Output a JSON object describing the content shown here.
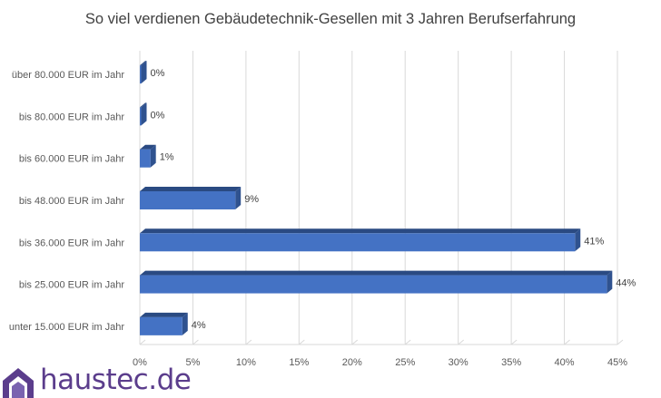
{
  "chart_data": {
    "type": "bar",
    "orientation": "horizontal",
    "title": "So viel verdienen Gebäudetechnik-Gesellen mit 3 Jahren Berufserfahrung",
    "categories": [
      "über 80.000 EUR im Jahr",
      "bis 80.000 EUR im Jahr",
      "bis 60.000 EUR im Jahr",
      "bis 48.000 EUR im Jahr",
      "bis 36.000 EUR im Jahr",
      "bis 25.000 EUR im Jahr",
      "unter 15.000 EUR im Jahr"
    ],
    "values": [
      0,
      0,
      1,
      9,
      41,
      44,
      4
    ],
    "data_labels": [
      "0%",
      "0%",
      "1%",
      "9%",
      "41%",
      "44%",
      "4%"
    ],
    "xlim": [
      0,
      45
    ],
    "xticks": [
      0,
      5,
      10,
      15,
      20,
      25,
      30,
      35,
      40,
      45
    ],
    "xtick_labels": [
      "0%",
      "5%",
      "10%",
      "15%",
      "20%",
      "25%",
      "30%",
      "35%",
      "40%",
      "45%"
    ],
    "grid": true,
    "legend": "none",
    "bar_color": "#4472c4",
    "bar_side_color": "#2f528f",
    "bar_top_color": "#2a4a82"
  },
  "brand": {
    "logo_text": "haustec.de",
    "logo_color": "#5b3d8c",
    "roof_colors": [
      "#5b3d8c",
      "#7a63b0"
    ]
  }
}
